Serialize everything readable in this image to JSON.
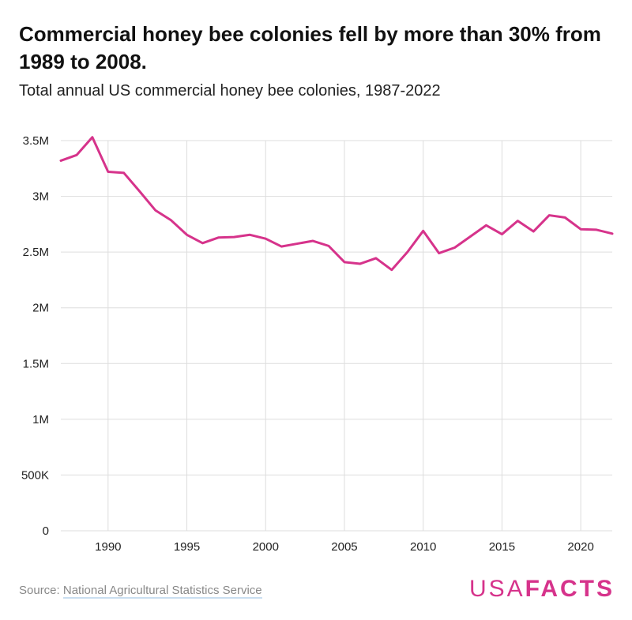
{
  "title": "Commercial honey bee colonies fell by more than 30% from 1989 to 2008.",
  "subtitle": "Total annual US commercial honey bee colonies, 1987-2022",
  "source": {
    "label": "Source: ",
    "link_text": "National Agricultural Statistics Service"
  },
  "logo": {
    "part1": "USA",
    "part2": "FACTS"
  },
  "colors": {
    "line": "#d6338b",
    "grid": "#dddddd",
    "text": "#222222"
  },
  "chart_data": {
    "type": "line",
    "title": "",
    "xlabel": "",
    "ylabel": "",
    "xlim": [
      1987,
      2022
    ],
    "ylim": [
      0,
      3500000
    ],
    "grid": true,
    "x_ticks": [
      1990,
      1995,
      2000,
      2005,
      2010,
      2015,
      2020
    ],
    "x_tick_labels": [
      "1990",
      "1995",
      "2000",
      "2005",
      "2010",
      "2015",
      "2020"
    ],
    "y_ticks": [
      0,
      500000,
      1000000,
      1500000,
      2000000,
      2500000,
      3000000,
      3500000
    ],
    "y_tick_labels": [
      "0",
      "500K",
      "1M",
      "1.5M",
      "2M",
      "2.5M",
      "3M",
      "3.5M"
    ],
    "x": [
      1987,
      1988,
      1989,
      1990,
      1991,
      1992,
      1993,
      1994,
      1995,
      1996,
      1997,
      1998,
      1999,
      2000,
      2001,
      2002,
      2003,
      2004,
      2005,
      2006,
      2007,
      2008,
      2009,
      2010,
      2011,
      2012,
      2013,
      2014,
      2015,
      2016,
      2017,
      2018,
      2019,
      2020,
      2021,
      2022
    ],
    "series": [
      {
        "values": [
          3320000,
          3370000,
          3530000,
          3220000,
          3210000,
          3045000,
          2875000,
          2785000,
          2655000,
          2580000,
          2630000,
          2635000,
          2655000,
          2620000,
          2550000,
          2575000,
          2600000,
          2555000,
          2410000,
          2395000,
          2445000,
          2340000,
          2500000,
          2690000,
          2490000,
          2540000,
          2640000,
          2740000,
          2660000,
          2780000,
          2685000,
          2830000,
          2810000,
          2705000,
          2700000,
          2665000
        ]
      }
    ]
  }
}
